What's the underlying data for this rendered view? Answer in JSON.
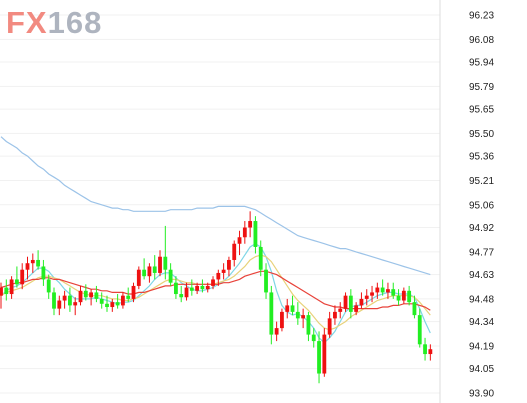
{
  "logo": {
    "text_fx": "FX",
    "text_num": "168",
    "color_fx": "#F28A80",
    "color_num": "#AEB4BF"
  },
  "colors": {
    "up_candle": "#EE1111",
    "down_candle": "#22EE22",
    "ma_fast": "#7FD6E6",
    "ma_mid": "#E8D27A",
    "ma_slow": "#E8423A",
    "ma_long": "#9CC3E8",
    "grid": "#F1F1F1",
    "axis_line": "#DDDDDD"
  },
  "chart_data": {
    "type": "candlestick",
    "ylim": [
      93.9,
      96.23
    ],
    "yticks": [
      "96.23",
      "96.08",
      "95.94",
      "95.79",
      "95.65",
      "95.50",
      "95.36",
      "95.21",
      "95.06",
      "94.92",
      "94.77",
      "94.63",
      "94.48",
      "94.34",
      "94.19",
      "94.05",
      "93.90"
    ],
    "grid": true,
    "candles": [
      [
        94.5,
        94.58,
        94.42,
        94.55
      ],
      [
        94.55,
        94.6,
        94.47,
        94.51
      ],
      [
        94.51,
        94.62,
        94.48,
        94.6
      ],
      [
        94.6,
        94.68,
        94.55,
        94.57
      ],
      [
        94.57,
        94.7,
        94.54,
        94.66
      ],
      [
        94.66,
        94.74,
        94.6,
        94.7
      ],
      [
        94.7,
        94.76,
        94.64,
        94.72
      ],
      [
        94.72,
        94.78,
        94.66,
        94.68
      ],
      [
        94.68,
        94.72,
        94.56,
        94.6
      ],
      [
        94.6,
        94.63,
        94.48,
        94.52
      ],
      [
        94.52,
        94.55,
        94.38,
        94.42
      ],
      [
        94.42,
        94.5,
        94.38,
        94.47
      ],
      [
        94.47,
        94.53,
        94.42,
        94.5
      ],
      [
        94.5,
        94.55,
        94.4,
        94.44
      ],
      [
        94.44,
        94.49,
        94.38,
        94.46
      ],
      [
        94.46,
        94.56,
        94.44,
        94.53
      ],
      [
        94.53,
        94.57,
        94.47,
        94.49
      ],
      [
        94.49,
        94.54,
        94.44,
        94.52
      ],
      [
        94.52,
        94.56,
        94.46,
        94.48
      ],
      [
        94.48,
        94.52,
        94.42,
        94.45
      ],
      [
        94.45,
        94.5,
        94.4,
        94.43
      ],
      [
        94.43,
        94.48,
        94.4,
        94.46
      ],
      [
        94.46,
        94.51,
        94.42,
        94.44
      ],
      [
        94.44,
        94.52,
        94.42,
        94.5
      ],
      [
        94.5,
        94.55,
        94.46,
        94.48
      ],
      [
        94.48,
        94.58,
        94.46,
        94.56
      ],
      [
        94.56,
        94.68,
        94.54,
        94.66
      ],
      [
        94.66,
        94.73,
        94.6,
        94.62
      ],
      [
        94.62,
        94.7,
        94.58,
        94.68
      ],
      [
        94.68,
        94.75,
        94.6,
        94.64
      ],
      [
        94.64,
        94.78,
        94.62,
        94.74
      ],
      [
        94.74,
        94.93,
        94.6,
        94.66
      ],
      [
        94.66,
        94.7,
        94.56,
        94.58
      ],
      [
        94.58,
        94.62,
        94.48,
        94.51
      ],
      [
        94.51,
        94.56,
        94.46,
        94.49
      ],
      [
        94.49,
        94.58,
        94.47,
        94.55
      ],
      [
        94.55,
        94.6,
        94.5,
        94.53
      ],
      [
        94.53,
        94.58,
        94.51,
        94.56
      ],
      [
        94.56,
        94.6,
        94.52,
        94.54
      ],
      [
        94.54,
        94.58,
        94.52,
        94.56
      ],
      [
        94.56,
        94.62,
        94.54,
        94.6
      ],
      [
        94.6,
        94.66,
        94.56,
        94.64
      ],
      [
        94.64,
        94.7,
        94.6,
        94.66
      ],
      [
        94.66,
        94.74,
        94.62,
        94.72
      ],
      [
        94.72,
        94.84,
        94.68,
        94.82
      ],
      [
        94.82,
        94.9,
        94.75,
        94.86
      ],
      [
        94.86,
        94.96,
        94.82,
        94.92
      ],
      [
        94.92,
        95.02,
        94.86,
        94.96
      ],
      [
        94.96,
        94.99,
        94.76,
        94.8
      ],
      [
        94.8,
        94.84,
        94.62,
        94.66
      ],
      [
        94.66,
        94.7,
        94.48,
        94.52
      ],
      [
        94.52,
        94.56,
        94.2,
        94.26
      ],
      [
        94.26,
        94.34,
        94.22,
        94.3
      ],
      [
        94.3,
        94.42,
        94.28,
        94.4
      ],
      [
        94.4,
        94.48,
        94.36,
        94.44
      ],
      [
        94.44,
        94.5,
        94.38,
        94.4
      ],
      [
        94.4,
        94.46,
        94.32,
        94.36
      ],
      [
        94.36,
        94.42,
        94.3,
        94.38
      ],
      [
        94.38,
        94.4,
        94.22,
        94.26
      ],
      [
        94.26,
        94.3,
        94.18,
        94.22
      ],
      [
        94.22,
        94.28,
        93.96,
        94.02
      ],
      [
        94.02,
        94.3,
        94.0,
        94.26
      ],
      [
        94.26,
        94.4,
        94.24,
        94.36
      ],
      [
        94.36,
        94.44,
        94.32,
        94.4
      ],
      [
        94.4,
        94.46,
        94.36,
        94.42
      ],
      [
        94.42,
        94.52,
        94.4,
        94.5
      ],
      [
        94.5,
        94.54,
        94.36,
        94.4
      ],
      [
        94.4,
        94.46,
        94.38,
        94.44
      ],
      [
        94.44,
        94.52,
        94.42,
        94.48
      ],
      [
        94.48,
        94.54,
        94.44,
        94.5
      ],
      [
        94.5,
        94.56,
        94.46,
        94.52
      ],
      [
        94.52,
        94.58,
        94.48,
        94.55
      ],
      [
        94.55,
        94.6,
        94.5,
        94.52
      ],
      [
        94.52,
        94.58,
        94.48,
        94.54
      ],
      [
        94.54,
        94.58,
        94.48,
        94.5
      ],
      [
        94.5,
        94.54,
        94.44,
        94.47
      ],
      [
        94.47,
        94.55,
        94.45,
        94.53
      ],
      [
        94.53,
        94.56,
        94.44,
        94.46
      ],
      [
        94.46,
        94.5,
        94.36,
        94.38
      ],
      [
        94.38,
        94.42,
        94.18,
        94.2
      ],
      [
        94.2,
        94.24,
        94.1,
        94.14
      ],
      [
        94.14,
        94.2,
        94.1,
        94.17
      ]
    ],
    "moving_averages": [
      {
        "color_key": "ma_fast",
        "values": [
          94.5,
          94.53,
          94.55,
          94.56,
          94.58,
          94.61,
          94.64,
          94.67,
          94.67,
          94.65,
          94.61,
          94.58,
          94.54,
          94.51,
          94.48,
          94.48,
          94.48,
          94.48,
          94.49,
          94.48,
          94.47,
          94.46,
          94.45,
          94.46,
          94.46,
          94.47,
          94.5,
          94.53,
          94.56,
          94.6,
          94.63,
          94.64,
          94.64,
          94.61,
          94.58,
          94.56,
          94.54,
          94.53,
          94.53,
          94.54,
          94.55,
          94.57,
          94.59,
          94.62,
          94.66,
          94.7,
          94.75,
          94.8,
          94.82,
          94.8,
          94.74,
          94.65,
          94.53,
          94.44,
          94.4,
          94.38,
          94.39,
          94.37,
          94.34,
          94.3,
          94.24,
          94.21,
          94.24,
          94.28,
          94.34,
          94.4,
          94.43,
          94.44,
          94.44,
          94.46,
          94.48,
          94.5,
          94.51,
          94.52,
          94.52,
          94.51,
          94.51,
          94.51,
          94.49,
          94.42,
          94.34,
          94.27
        ]
      },
      {
        "color_key": "ma_mid",
        "values": [
          94.5,
          94.52,
          94.53,
          94.54,
          94.55,
          94.57,
          94.59,
          94.61,
          94.62,
          94.62,
          94.61,
          94.6,
          94.58,
          94.56,
          94.54,
          94.52,
          94.51,
          94.5,
          94.5,
          94.5,
          94.49,
          94.48,
          94.48,
          94.47,
          94.47,
          94.48,
          94.49,
          94.51,
          94.53,
          94.55,
          94.57,
          94.59,
          94.6,
          94.6,
          94.59,
          94.58,
          94.58,
          94.57,
          94.57,
          94.57,
          94.57,
          94.58,
          94.59,
          94.6,
          94.62,
          94.65,
          94.68,
          94.72,
          94.74,
          94.75,
          94.74,
          94.71,
          94.66,
          94.61,
          94.56,
          94.51,
          94.47,
          94.44,
          94.41,
          94.37,
          94.33,
          94.3,
          94.29,
          94.3,
          94.32,
          94.34,
          94.37,
          94.39,
          94.41,
          94.43,
          94.45,
          94.47,
          94.48,
          94.49,
          94.5,
          94.5,
          94.5,
          94.5,
          94.49,
          94.46,
          94.42,
          94.38
        ]
      },
      {
        "color_key": "ma_slow",
        "values": [
          94.55,
          94.56,
          94.57,
          94.58,
          94.58,
          94.59,
          94.6,
          94.6,
          94.61,
          94.61,
          94.6,
          94.6,
          94.59,
          94.58,
          94.57,
          94.56,
          94.55,
          94.54,
          94.54,
          94.53,
          94.53,
          94.52,
          94.52,
          94.52,
          94.51,
          94.51,
          94.52,
          94.52,
          94.53,
          94.54,
          94.55,
          94.56,
          94.56,
          94.57,
          94.57,
          94.57,
          94.57,
          94.57,
          94.57,
          94.57,
          94.57,
          94.57,
          94.58,
          94.58,
          94.59,
          94.6,
          94.62,
          94.63,
          94.64,
          94.65,
          94.65,
          94.64,
          94.63,
          94.61,
          94.59,
          94.57,
          94.55,
          94.53,
          94.51,
          94.49,
          94.47,
          94.45,
          94.44,
          94.43,
          94.43,
          94.42,
          94.42,
          94.42,
          94.42,
          94.42,
          94.42,
          94.42,
          94.43,
          94.43,
          94.44,
          94.44,
          94.45,
          94.45,
          94.45,
          94.44,
          94.43,
          94.41
        ]
      },
      {
        "color_key": "ma_long",
        "values": [
          95.48,
          95.45,
          95.43,
          95.41,
          95.38,
          95.36,
          95.33,
          95.3,
          95.28,
          95.25,
          95.23,
          95.21,
          95.18,
          95.16,
          95.14,
          95.12,
          95.1,
          95.08,
          95.07,
          95.06,
          95.05,
          95.04,
          95.04,
          95.03,
          95.03,
          95.02,
          95.02,
          95.02,
          95.02,
          95.02,
          95.02,
          95.02,
          95.03,
          95.03,
          95.03,
          95.03,
          95.03,
          95.04,
          95.04,
          95.04,
          95.04,
          95.05,
          95.05,
          95.05,
          95.05,
          95.05,
          95.05,
          95.04,
          95.03,
          95.01,
          94.99,
          94.97,
          94.95,
          94.93,
          94.91,
          94.89,
          94.87,
          94.86,
          94.85,
          94.84,
          94.83,
          94.82,
          94.81,
          94.8,
          94.79,
          94.79,
          94.78,
          94.77,
          94.76,
          94.75,
          94.74,
          94.73,
          94.72,
          94.71,
          94.7,
          94.69,
          94.68,
          94.67,
          94.66,
          94.65,
          94.64,
          94.63
        ]
      }
    ]
  }
}
